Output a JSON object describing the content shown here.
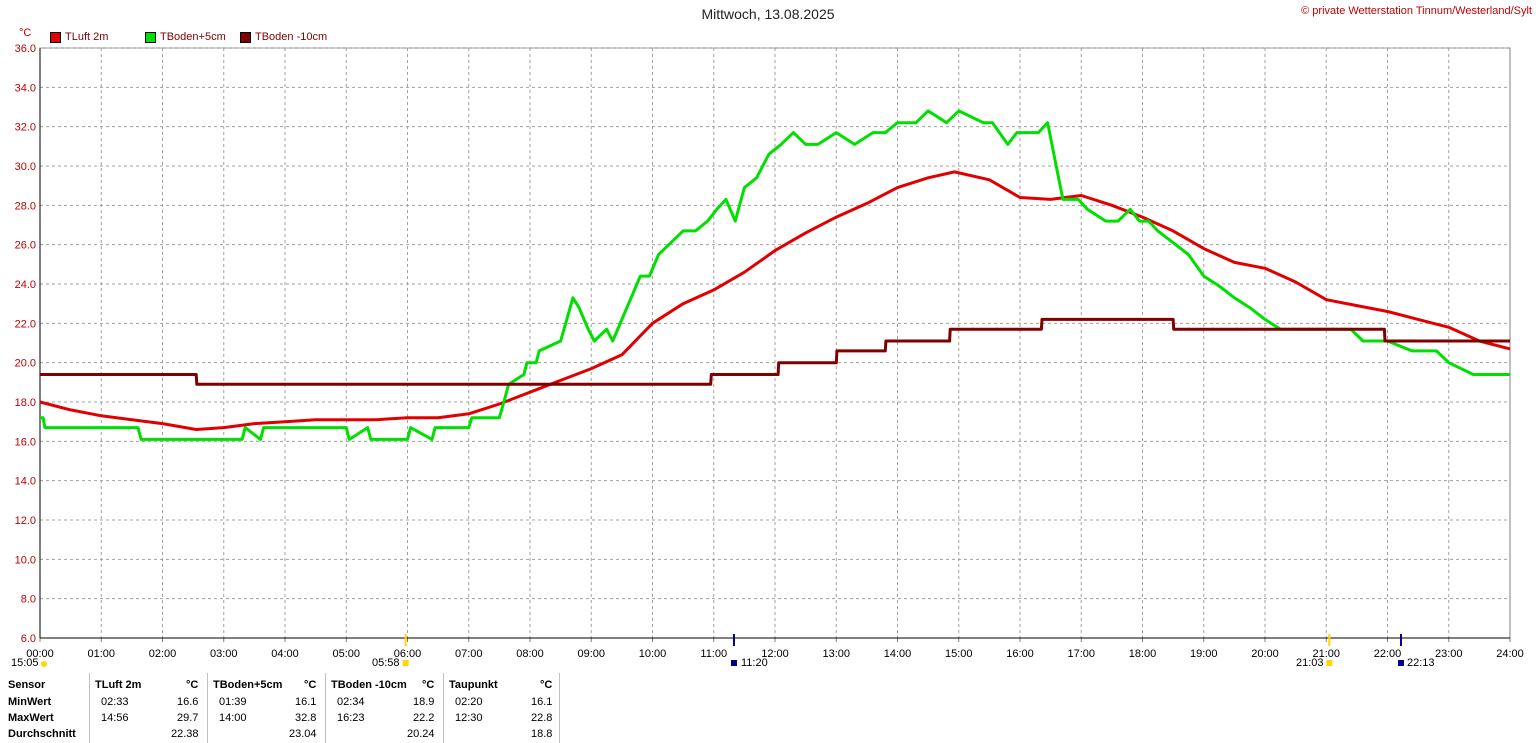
{
  "header": {
    "title": "Mittwoch, 13.08.2025",
    "copyright": "© private Wetterstation Tinnum/Westerland/Sylt",
    "unit": "°C"
  },
  "legend": [
    {
      "label": "TLuft 2m",
      "color": "#e00000"
    },
    {
      "label": "TBoden+5cm",
      "color": "#00e000"
    },
    {
      "label": "TBoden -10cm",
      "color": "#800000"
    }
  ],
  "sun_markers": {
    "left_time": "15:05",
    "sunrise": "05:58",
    "moon_rise": "11:20",
    "sunset": "21:03",
    "moon_set": "22:13"
  },
  "chart_data": {
    "type": "line",
    "title": "Mittwoch, 13.08.2025",
    "ylabel": "°C",
    "ylim": [
      6,
      36
    ],
    "xlim": [
      0,
      24
    ],
    "grid": true,
    "legend_position": "top-left",
    "y_ticks": [
      "6.0",
      "8.0",
      "10.0",
      "12.0",
      "14.0",
      "16.0",
      "18.0",
      "20.0",
      "22.0",
      "24.0",
      "26.0",
      "28.0",
      "30.0",
      "32.0",
      "34.0",
      "36.0"
    ],
    "x_ticks": [
      "00:00",
      "01:00",
      "02:00",
      "03:00",
      "04:00",
      "05:00",
      "06:00",
      "07:00",
      "08:00",
      "09:00",
      "10:00",
      "11:00",
      "12:00",
      "13:00",
      "14:00",
      "15:00",
      "16:00",
      "17:00",
      "18:00",
      "19:00",
      "20:00",
      "21:00",
      "22:00",
      "23:00",
      "24:00"
    ],
    "series": [
      {
        "name": "TLuft 2m",
        "color": "#e00000",
        "x": [
          0,
          0.5,
          1,
          1.5,
          2,
          2.55,
          3,
          3.5,
          4,
          4.5,
          5,
          5.5,
          6,
          6.5,
          7,
          7.5,
          8,
          8.5,
          9,
          9.5,
          10,
          10.5,
          11,
          11.5,
          12,
          12.5,
          13,
          13.5,
          14,
          14.5,
          14.93,
          15.5,
          16,
          16.5,
          17,
          17.5,
          18,
          18.5,
          19,
          19.5,
          20,
          20.5,
          21,
          21.5,
          22,
          22.5,
          23,
          23.5,
          24
        ],
        "y": [
          18.0,
          17.6,
          17.3,
          17.1,
          16.9,
          16.6,
          16.7,
          16.9,
          17.0,
          17.1,
          17.1,
          17.1,
          17.2,
          17.2,
          17.4,
          17.9,
          18.5,
          19.1,
          19.7,
          20.4,
          22.0,
          23.0,
          23.7,
          24.6,
          25.7,
          26.6,
          27.4,
          28.1,
          28.9,
          29.4,
          29.7,
          29.3,
          28.4,
          28.3,
          28.5,
          28.0,
          27.4,
          26.7,
          25.8,
          25.1,
          24.8,
          24.1,
          23.2,
          22.9,
          22.6,
          22.2,
          21.8,
          21.1,
          20.7
        ]
      },
      {
        "name": "TBoden+5cm",
        "color": "#00e000",
        "x": [
          0,
          0.05,
          0.08,
          1.6,
          1.65,
          3.3,
          3.35,
          3.6,
          3.65,
          4.15,
          4.2,
          5.0,
          5.05,
          5.35,
          5.4,
          6.0,
          6.05,
          6.4,
          6.45,
          7.0,
          7.05,
          7.35,
          7.5,
          7.6,
          7.65,
          7.9,
          7.95,
          8.1,
          8.15,
          8.5,
          8.6,
          8.7,
          8.8,
          8.95,
          9.05,
          9.25,
          9.35,
          9.5,
          9.65,
          9.8,
          9.95,
          10.1,
          10.3,
          10.5,
          10.7,
          10.9,
          11.05,
          11.2,
          11.35,
          11.5,
          11.7,
          11.9,
          12.1,
          12.3,
          12.5,
          12.7,
          13.0,
          13.3,
          13.6,
          13.8,
          14.0,
          14.3,
          14.5,
          14.8,
          15.0,
          15.4,
          15.55,
          15.8,
          15.95,
          16.3,
          16.45,
          16.7,
          16.8,
          16.95,
          17.1,
          17.4,
          17.6,
          17.8,
          17.95,
          18.1,
          18.25,
          18.5,
          18.75,
          19.0,
          19.25,
          19.5,
          19.75,
          20.0,
          20.25,
          20.5,
          20.75,
          21.0,
          21.4,
          21.6,
          22.0,
          22.4,
          22.55,
          22.8,
          23.0,
          23.4,
          23.5,
          24.0
        ],
        "y": [
          17.2,
          17.2,
          16.7,
          16.7,
          16.1,
          16.1,
          16.7,
          16.1,
          16.7,
          16.7,
          16.7,
          16.7,
          16.1,
          16.7,
          16.1,
          16.1,
          16.7,
          16.1,
          16.7,
          16.7,
          17.2,
          17.2,
          17.2,
          18.3,
          18.9,
          19.4,
          20.0,
          20.0,
          20.6,
          21.1,
          22.2,
          23.3,
          22.8,
          21.7,
          21.1,
          21.7,
          21.1,
          22.2,
          23.3,
          24.4,
          24.4,
          25.5,
          26.1,
          26.7,
          26.7,
          27.2,
          27.8,
          28.3,
          27.2,
          28.9,
          29.4,
          30.6,
          31.1,
          31.7,
          31.1,
          31.1,
          31.7,
          31.1,
          31.7,
          31.7,
          32.2,
          32.2,
          32.8,
          32.2,
          32.8,
          32.2,
          32.2,
          31.1,
          31.7,
          31.7,
          32.2,
          28.3,
          28.3,
          28.3,
          27.8,
          27.2,
          27.2,
          27.8,
          27.2,
          27.2,
          26.7,
          26.1,
          25.5,
          24.4,
          23.9,
          23.3,
          22.8,
          22.2,
          21.7,
          21.7,
          21.7,
          21.7,
          21.7,
          21.1,
          21.1,
          20.6,
          20.6,
          20.6,
          20.0,
          19.4,
          19.4,
          19.4
        ]
      },
      {
        "name": "TBoden -10cm",
        "color": "#800000",
        "x": [
          0,
          2.55,
          2.56,
          10.95,
          10.96,
          12.05,
          12.06,
          13.0,
          13.01,
          13.8,
          13.81,
          14.85,
          14.86,
          16.35,
          16.36,
          18.5,
          18.51,
          21.95,
          21.96,
          24
        ],
        "y": [
          19.4,
          19.4,
          18.9,
          18.9,
          19.4,
          19.4,
          20.0,
          20.0,
          20.6,
          20.6,
          21.1,
          21.1,
          21.7,
          21.7,
          22.2,
          22.2,
          21.7,
          21.7,
          21.1,
          21.1
        ]
      }
    ]
  },
  "stats": {
    "headers": {
      "sensor": "Sensor",
      "tluft": "TLuft 2m",
      "tb5": "TBoden+5cm",
      "tb10": "TBoden -10cm",
      "tau": "Taupunkt",
      "unit": "°C"
    },
    "rows": [
      {
        "label": "MinWert",
        "tluft_t": "02:33",
        "tluft_v": "16.6",
        "tb5_t": "01:39",
        "tb5_v": "16.1",
        "tb10_t": "02:34",
        "tb10_v": "18.9",
        "tau_t": "02:20",
        "tau_v": "16.1"
      },
      {
        "label": "MaxWert",
        "tluft_t": "14:56",
        "tluft_v": "29.7",
        "tb5_t": "14:00",
        "tb5_v": "32.8",
        "tb10_t": "16:23",
        "tb10_v": "22.2",
        "tau_t": "12:30",
        "tau_v": "22.8"
      },
      {
        "label": "Durchschnitt",
        "tluft_t": "",
        "tluft_v": "22.38",
        "tb5_t": "",
        "tb5_v": "23.04",
        "tb10_t": "",
        "tb10_v": "20.24",
        "tau_t": "",
        "tau_v": "18.8"
      }
    ]
  }
}
